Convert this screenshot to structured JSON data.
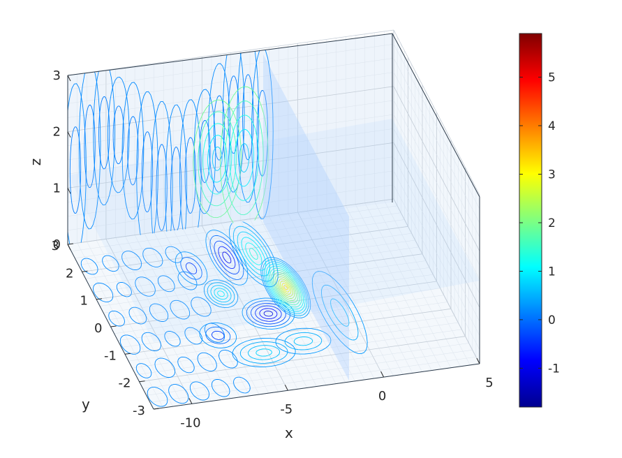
{
  "chart_data": {
    "type": "contour",
    "view": "3d",
    "xlabel": "x",
    "ylabel": "y",
    "zlabel": "z",
    "xlim": [
      -12,
      5
    ],
    "ylim": [
      -3,
      3
    ],
    "zlim": [
      0,
      3
    ],
    "x_ticks": [
      "-10",
      "-5",
      "0",
      "5"
    ],
    "y_ticks": [
      "-3",
      "-2",
      "-1",
      "0",
      "1",
      "2",
      "3"
    ],
    "z_ticks": [
      "0",
      "1",
      "2",
      "3"
    ],
    "grid": true,
    "colormap": "jet",
    "colorbar": {
      "ticks": [
        "-1",
        "0",
        "1",
        "2",
        "3",
        "4",
        "5"
      ],
      "range": [
        -1.8,
        5.9
      ]
    },
    "contour_planes": [
      "z = 0 (floor)",
      "back wall (y = 3)"
    ],
    "slice_planes": [
      "x = -3",
      "z = 1.2"
    ],
    "colors": {
      "contour_low": "#00008f",
      "contour_mid": "#00a0ff",
      "contour_high": "#c8ff3a",
      "plane": "#a6ccff"
    }
  }
}
